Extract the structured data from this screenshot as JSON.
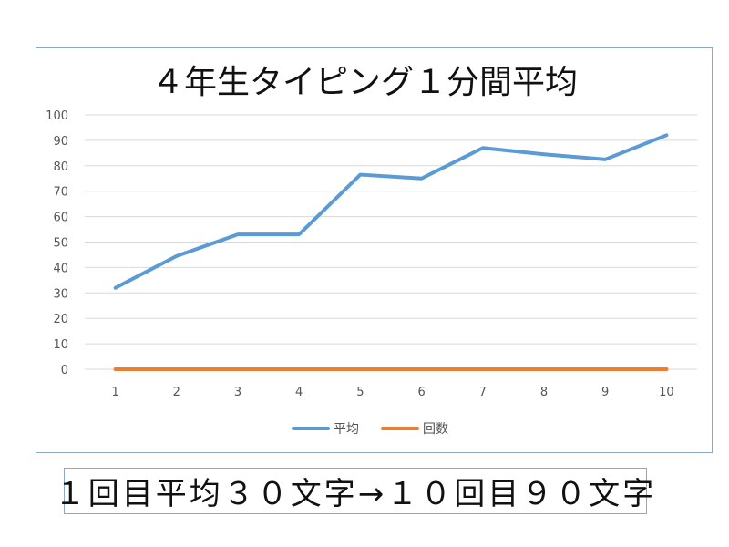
{
  "chart_data": {
    "type": "line",
    "title": "４年生タイピング１分間平均",
    "categories": [
      "1",
      "2",
      "3",
      "4",
      "5",
      "6",
      "7",
      "8",
      "9",
      "10"
    ],
    "series": [
      {
        "name": "平均",
        "color": "#5b9bd5",
        "values": [
          32,
          44.5,
          53,
          53,
          76.5,
          75,
          87,
          84.5,
          82.5,
          92
        ]
      },
      {
        "name": "回数",
        "color": "#ed7d31",
        "values": [
          0,
          0,
          0,
          0,
          0,
          0,
          0,
          0,
          0,
          0
        ]
      }
    ],
    "ylim": [
      0,
      100
    ],
    "yticks": [
      0,
      10,
      20,
      30,
      40,
      50,
      60,
      70,
      80,
      90,
      100
    ],
    "xlabel": "",
    "ylabel": "",
    "grid": true,
    "legend": "bottom"
  },
  "caption": "１回目平均３０文字→１０回目９０文字"
}
